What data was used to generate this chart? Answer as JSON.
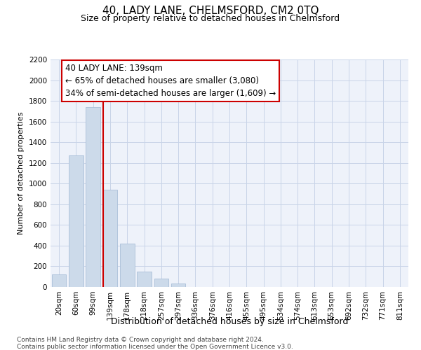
{
  "title": "40, LADY LANE, CHELMSFORD, CM2 0TQ",
  "subtitle": "Size of property relative to detached houses in Chelmsford",
  "xlabel": "Distribution of detached houses by size in Chelmsford",
  "ylabel": "Number of detached properties",
  "categories": [
    "20sqm",
    "60sqm",
    "99sqm",
    "139sqm",
    "178sqm",
    "218sqm",
    "257sqm",
    "297sqm",
    "336sqm",
    "376sqm",
    "416sqm",
    "455sqm",
    "495sqm",
    "534sqm",
    "574sqm",
    "613sqm",
    "653sqm",
    "692sqm",
    "732sqm",
    "771sqm",
    "811sqm"
  ],
  "values": [
    120,
    1270,
    1740,
    940,
    420,
    150,
    80,
    35,
    0,
    0,
    0,
    0,
    0,
    0,
    0,
    0,
    0,
    0,
    0,
    0,
    0
  ],
  "bar_color": "#ccdaea",
  "bar_edge_color": "#aabfd8",
  "vline_x": 2.57,
  "vline_color": "#cc0000",
  "annotation_line1": "40 LADY LANE: 139sqm",
  "annotation_line2": "← 65% of detached houses are smaller (3,080)",
  "annotation_line3": "34% of semi-detached houses are larger (1,609) →",
  "annotation_box_color": "#cc0000",
  "annotation_box_bg": "white",
  "ylim": [
    0,
    2200
  ],
  "yticks": [
    0,
    200,
    400,
    600,
    800,
    1000,
    1200,
    1400,
    1600,
    1800,
    2000,
    2200
  ],
  "footnote1": "Contains HM Land Registry data © Crown copyright and database right 2024.",
  "footnote2": "Contains public sector information licensed under the Open Government Licence v3.0.",
  "bg_color": "#eef2fa",
  "grid_color": "#c8d4e8",
  "title_fontsize": 11,
  "subtitle_fontsize": 9,
  "ylabel_fontsize": 8,
  "xlabel_fontsize": 9,
  "tick_fontsize": 7.5,
  "annot_fontsize": 8.5,
  "footnote_fontsize": 6.5
}
